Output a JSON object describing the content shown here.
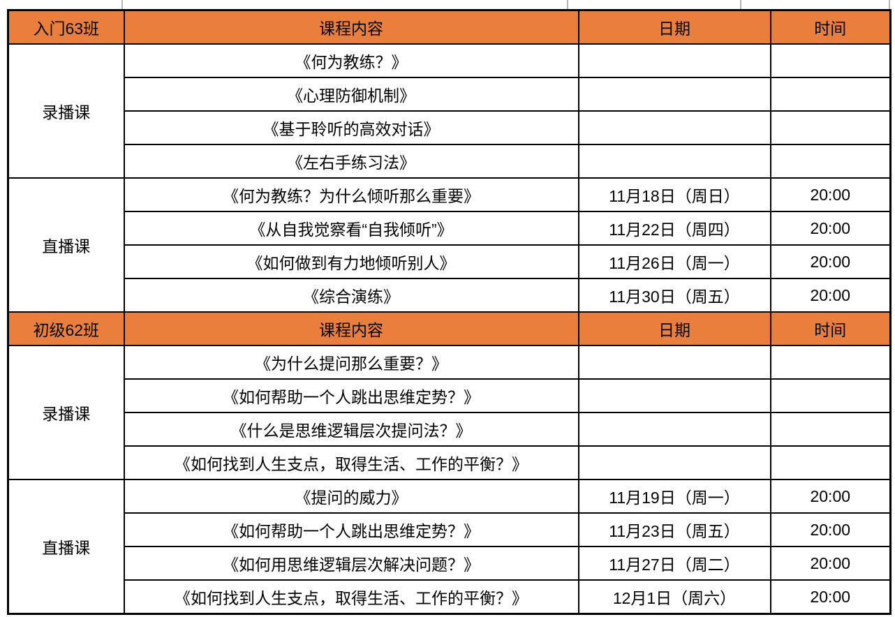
{
  "accent_color": "#EA7E3C",
  "border_color": "#000000",
  "table": {
    "sections": [
      {
        "header": {
          "class_label": "入门63班",
          "content": "课程内容",
          "date": "日期",
          "time": "时间"
        },
        "groups": [
          {
            "label": "录播课",
            "rows": [
              {
                "content": "《何为教练？》",
                "date": "",
                "time": ""
              },
              {
                "content": "《心理防御机制》",
                "date": "",
                "time": ""
              },
              {
                "content": "《基于聆听的高效对话》",
                "date": "",
                "time": ""
              },
              {
                "content": "《左右手练习法》",
                "date": "",
                "time": ""
              }
            ]
          },
          {
            "label": "直播课",
            "rows": [
              {
                "content": "《何为教练？为什么倾听那么重要》",
                "date": "11月18日（周日）",
                "time": "20:00"
              },
              {
                "content": "《从自我觉察看“自我倾听”》",
                "date": "11月22日（周四）",
                "time": "20:00"
              },
              {
                "content": "《如何做到有力地倾听别人》",
                "date": "11月26日（周一）",
                "time": "20:00"
              },
              {
                "content": "《综合演练》",
                "date": "11月30日（周五）",
                "time": "20:00"
              }
            ]
          }
        ]
      },
      {
        "header": {
          "class_label": "初级62班",
          "content": "课程内容",
          "date": "日期",
          "time": "时间"
        },
        "groups": [
          {
            "label": "录播课",
            "rows": [
              {
                "content": "《为什么提问那么重要？》",
                "date": "",
                "time": ""
              },
              {
                "content": "《如何帮助一个人跳出思维定势？》",
                "date": "",
                "time": ""
              },
              {
                "content": "《什么是思维逻辑层次提问法？》",
                "date": "",
                "time": ""
              },
              {
                "content": "《如何找到人生支点，取得生活、工作的平衡？》",
                "date": "",
                "time": ""
              }
            ]
          },
          {
            "label": "直播课",
            "rows": [
              {
                "content": "《提问的威力》",
                "date": "11月19日（周一）",
                "time": "20:00"
              },
              {
                "content": "《如何帮助一个人跳出思维定势？》",
                "date": "11月23日（周五）",
                "time": "20:00"
              },
              {
                "content": "《如何用思维逻辑层次解决问题？》",
                "date": "11月27日（周二）",
                "time": "20:00"
              },
              {
                "content": "《如何找到人生支点，取得生活、工作的平衡？》",
                "date": "12月1日（周六）",
                "time": "20:00"
              }
            ]
          }
        ]
      }
    ]
  }
}
